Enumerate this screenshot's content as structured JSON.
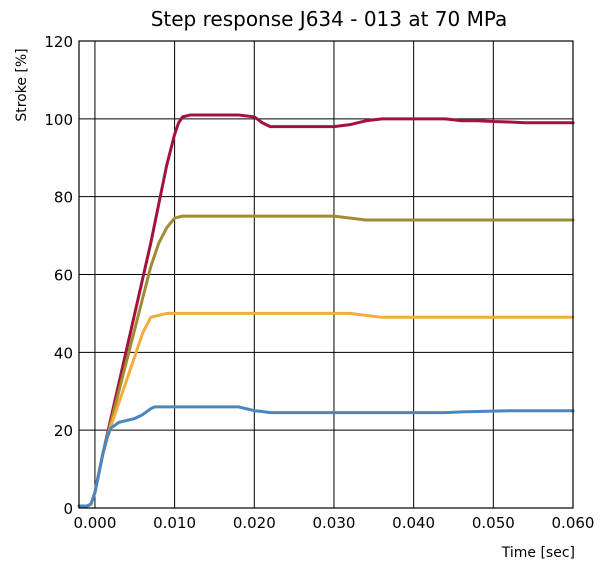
{
  "chart_data": {
    "type": "line",
    "title": "Step response J634 - 013 at 70 MPa",
    "xlabel": "Time [sec]",
    "ylabel": "Stroke [%]",
    "xlim": [
      -0.002,
      0.06
    ],
    "ylim": [
      0,
      120
    ],
    "xticks": [
      0.0,
      0.01,
      0.02,
      0.03,
      0.04,
      0.05,
      0.06
    ],
    "xtick_labels": [
      "0.000",
      "0.010",
      "0.020",
      "0.030",
      "0.040",
      "0.050",
      "0.060"
    ],
    "yticks": [
      0,
      20,
      40,
      60,
      80,
      100,
      120
    ],
    "ytick_labels": [
      "0",
      "20",
      "40",
      "60",
      "80",
      "100",
      "120"
    ],
    "grid": true,
    "series": [
      {
        "color": "#a3123a",
        "x": [
          -0.002,
          -0.001,
          -0.0005,
          0.0,
          0.0005,
          0.001,
          0.002,
          0.003,
          0.004,
          0.005,
          0.006,
          0.007,
          0.008,
          0.009,
          0.01,
          0.0105,
          0.011,
          0.012,
          0.014,
          0.016,
          0.018,
          0.02,
          0.021,
          0.022,
          0.024,
          0.026,
          0.028,
          0.03,
          0.032,
          0.034,
          0.036,
          0.038,
          0.04,
          0.042,
          0.044,
          0.046,
          0.048,
          0.05,
          0.052,
          0.054,
          0.056,
          0.058,
          0.06
        ],
        "y": [
          0.5,
          0.5,
          1.0,
          4.0,
          9.0,
          14.0,
          23.0,
          32.0,
          41.0,
          50.0,
          59.0,
          68.0,
          78.0,
          88.0,
          96.0,
          99.0,
          100.5,
          101.0,
          101.0,
          101.0,
          101.0,
          100.5,
          99.0,
          98.0,
          98.0,
          98.0,
          98.0,
          98.0,
          98.5,
          99.5,
          100.0,
          100.0,
          100.0,
          100.0,
          100.0,
          99.5,
          99.5,
          99.3,
          99.2,
          99.0,
          99.0,
          99.0,
          99.0
        ]
      },
      {
        "color": "#a08b34",
        "x": [
          -0.002,
          -0.001,
          -0.0005,
          0.0,
          0.0005,
          0.001,
          0.002,
          0.003,
          0.004,
          0.005,
          0.006,
          0.007,
          0.008,
          0.009,
          0.01,
          0.011,
          0.012,
          0.014,
          0.016,
          0.018,
          0.02,
          0.022,
          0.024,
          0.026,
          0.028,
          0.03,
          0.032,
          0.034,
          0.036,
          0.038,
          0.04,
          0.042,
          0.044,
          0.046,
          0.048,
          0.05,
          0.052,
          0.054,
          0.056,
          0.058,
          0.06
        ],
        "y": [
          0.5,
          0.5,
          1.0,
          4.0,
          9.0,
          14.0,
          22.0,
          30.0,
          38.0,
          46.0,
          54.0,
          62.0,
          68.0,
          72.0,
          74.5,
          75.0,
          75.0,
          75.0,
          75.0,
          75.0,
          75.0,
          75.0,
          75.0,
          75.0,
          75.0,
          75.0,
          74.5,
          74.0,
          74.0,
          74.0,
          74.0,
          74.0,
          74.0,
          74.0,
          74.0,
          74.0,
          74.0,
          74.0,
          74.0,
          74.0,
          74.0
        ]
      },
      {
        "color": "#f2ad3c",
        "x": [
          -0.002,
          -0.001,
          -0.0005,
          0.0,
          0.0005,
          0.001,
          0.002,
          0.003,
          0.004,
          0.005,
          0.006,
          0.007,
          0.008,
          0.009,
          0.01,
          0.012,
          0.014,
          0.016,
          0.018,
          0.02,
          0.022,
          0.024,
          0.026,
          0.028,
          0.03,
          0.032,
          0.034,
          0.036,
          0.038,
          0.04,
          0.042,
          0.044,
          0.046,
          0.048,
          0.05,
          0.052,
          0.054,
          0.056,
          0.058,
          0.06
        ],
        "y": [
          0.5,
          0.5,
          1.0,
          4.0,
          9.0,
          14.0,
          21.0,
          27.0,
          33.0,
          39.0,
          45.0,
          49.0,
          49.5,
          50.0,
          50.0,
          50.0,
          50.0,
          50.0,
          50.0,
          50.0,
          50.0,
          50.0,
          50.0,
          50.0,
          50.0,
          50.0,
          49.5,
          49.0,
          49.0,
          49.0,
          49.0,
          49.0,
          49.0,
          49.0,
          49.0,
          49.0,
          49.0,
          49.0,
          49.0,
          49.0
        ]
      },
      {
        "color": "#4a86bf",
        "x": [
          -0.002,
          -0.001,
          -0.0005,
          0.0,
          0.0005,
          0.001,
          0.0015,
          0.002,
          0.003,
          0.004,
          0.005,
          0.006,
          0.007,
          0.0075,
          0.008,
          0.009,
          0.01,
          0.012,
          0.014,
          0.016,
          0.018,
          0.019,
          0.02,
          0.021,
          0.022,
          0.024,
          0.026,
          0.028,
          0.03,
          0.032,
          0.034,
          0.036,
          0.038,
          0.04,
          0.042,
          0.044,
          0.046,
          0.048,
          0.05,
          0.052,
          0.054,
          0.056,
          0.058,
          0.06
        ],
        "y": [
          0.5,
          0.5,
          1.0,
          4.0,
          9.0,
          14.0,
          18.0,
          20.5,
          22.0,
          22.5,
          23.0,
          24.0,
          25.5,
          26.0,
          26.0,
          26.0,
          26.0,
          26.0,
          26.0,
          26.0,
          26.0,
          25.5,
          25.0,
          24.8,
          24.5,
          24.5,
          24.5,
          24.5,
          24.5,
          24.5,
          24.5,
          24.5,
          24.5,
          24.5,
          24.5,
          24.5,
          24.7,
          24.8,
          24.9,
          25.0,
          25.0,
          25.0,
          25.0,
          25.0
        ]
      }
    ]
  }
}
